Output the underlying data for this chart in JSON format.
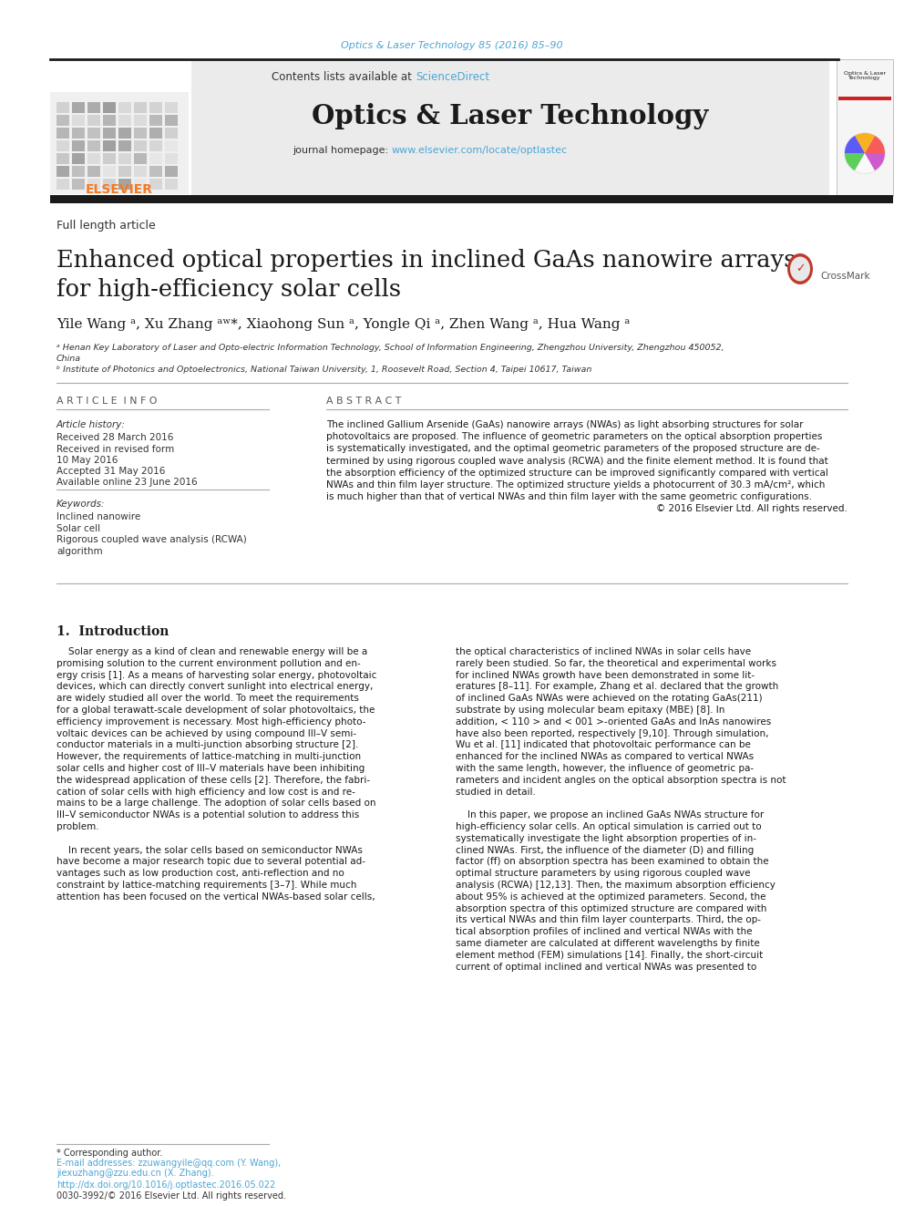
{
  "bg_color": "#ffffff",
  "journal_ref": "Optics & Laser Technology 85 (2016) 85–90",
  "journal_ref_color": "#4da6d4",
  "contents_text": "Contents lists available at ",
  "sciencedirect_text": "ScienceDirect",
  "journal_title": "Optics & Laser Technology",
  "journal_homepage_text": "journal homepage: ",
  "journal_url": "www.elsevier.com/locate/optlastec",
  "journal_url_color": "#4da6d4",
  "article_type": "Full length article",
  "paper_title_line1": "Enhanced optical properties in inclined GaAs nanowire arrays",
  "paper_title_line2": "for high-efficiency solar cells",
  "paper_title_color": "#1a1a1a",
  "authors": "Yile Wang ᵃ, Xu Zhang ᵃʷ*, Xiaohong Sun ᵃ, Yongle Qi ᵃ, Zhen Wang ᵃ, Hua Wang ᵃ",
  "affil_a": "ᵃ Henan Key Laboratory of Laser and Opto-electric Information Technology, School of Information Engineering, Zhengzhou University, Zhengzhou 450052,",
  "affil_a2": "China",
  "affil_b": "ᵇ Institute of Photonics and Optoelectronics, National Taiwan University, 1, Roosevelt Road, Section 4, Taipei 10617, Taiwan",
  "section_article_info": "A R T I C L E  I N F O",
  "section_abstract": "A B S T R A C T",
  "article_history_label": "Article history:",
  "received": "Received 28 March 2016",
  "revised": "Received in revised form",
  "revised2": "10 May 2016",
  "accepted": "Accepted 31 May 2016",
  "available": "Available online 23 June 2016",
  "keywords_label": "Keywords:",
  "keyword1": "Inclined nanowire",
  "keyword2": "Solar cell",
  "keyword3": "Rigorous coupled wave analysis (RCWA)",
  "keyword4": "algorithm",
  "abstract_lines": [
    "The inclined Gallium Arsenide (GaAs) nanowire arrays (NWAs) as light absorbing structures for solar",
    "photovoltaics are proposed. The influence of geometric parameters on the optical absorption properties",
    "is systematically investigated, and the optimal geometric parameters of the proposed structure are de-",
    "termined by using rigorous coupled wave analysis (RCWA) and the finite element method. It is found that",
    "the absorption efficiency of the optimized structure can be improved significantly compared with vertical",
    "NWAs and thin film layer structure. The optimized structure yields a photocurrent of 30.3 mA/cm², which",
    "is much higher than that of vertical NWAs and thin film layer with the same geometric configurations.",
    "© 2016 Elsevier Ltd. All rights reserved."
  ],
  "intro_heading": "1.  Introduction",
  "intro_col1": [
    "    Solar energy as a kind of clean and renewable energy will be a",
    "promising solution to the current environment pollution and en-",
    "ergy crisis [1]. As a means of harvesting solar energy, photovoltaic",
    "devices, which can directly convert sunlight into electrical energy,",
    "are widely studied all over the world. To meet the requirements",
    "for a global terawatt-scale development of solar photovoltaics, the",
    "efficiency improvement is necessary. Most high-efficiency photo-",
    "voltaic devices can be achieved by using compound III–V semi-",
    "conductor materials in a multi-junction absorbing structure [2].",
    "However, the requirements of lattice-matching in multi-junction",
    "solar cells and higher cost of III–V materials have been inhibiting",
    "the widespread application of these cells [2]. Therefore, the fabri-",
    "cation of solar cells with high efficiency and low cost is and re-",
    "mains to be a large challenge. The adoption of solar cells based on",
    "III–V semiconductor NWAs is a potential solution to address this",
    "problem.",
    "",
    "    In recent years, the solar cells based on semiconductor NWAs",
    "have become a major research topic due to several potential ad-",
    "vantages such as low production cost, anti-reflection and no",
    "constraint by lattice-matching requirements [3–7]. While much",
    "attention has been focused on the vertical NWAs-based solar cells,"
  ],
  "intro_col2": [
    "the optical characteristics of inclined NWAs in solar cells have",
    "rarely been studied. So far, the theoretical and experimental works",
    "for inclined NWAs growth have been demonstrated in some lit-",
    "eratures [8–11]. For example, Zhang et al. declared that the growth",
    "of inclined GaAs NWAs were achieved on the rotating GaAs(211)",
    "substrate by using molecular beam epitaxy (MBE) [8]. In",
    "addition, < 110 > and < 001 >-oriented GaAs and InAs nanowires",
    "have also been reported, respectively [9,10]. Through simulation,",
    "Wu et al. [11] indicated that photovoltaic performance can be",
    "enhanced for the inclined NWAs as compared to vertical NWAs",
    "with the same length, however, the influence of geometric pa-",
    "rameters and incident angles on the optical absorption spectra is not",
    "studied in detail.",
    "",
    "    In this paper, we propose an inclined GaAs NWAs structure for",
    "high-efficiency solar cells. An optical simulation is carried out to",
    "systematically investigate the light absorption properties of in-",
    "clined NWAs. First, the influence of the diameter (D) and filling",
    "factor (ff) on absorption spectra has been examined to obtain the",
    "optimal structure parameters by using rigorous coupled wave",
    "analysis (RCWA) [12,13]. Then, the maximum absorption efficiency",
    "about 95% is achieved at the optimized parameters. Second, the",
    "absorption spectra of this optimized structure are compared with",
    "its vertical NWAs and thin film layer counterparts. Third, the op-",
    "tical absorption profiles of inclined and vertical NWAs with the",
    "same diameter are calculated at different wavelengths by finite",
    "element method (FEM) simulations [14]. Finally, the short-circuit",
    "current of optimal inclined and vertical NWAs was presented to"
  ],
  "footer_note1": "* Corresponding author.",
  "footer_email": "E-mail addresses: zzuwangyile@qq.com (Y. Wang),",
  "footer_email2": "jiexuzhang@zzu.edu.cn (X. Zhang).",
  "footer_doi": "http://dx.doi.org/10.1016/j.optlastec.2016.05.022",
  "footer_issn": "0030-3992/© 2016 Elsevier Ltd. All rights reserved.",
  "link_color": "#4da6d4",
  "elsevier_orange": "#f47920"
}
